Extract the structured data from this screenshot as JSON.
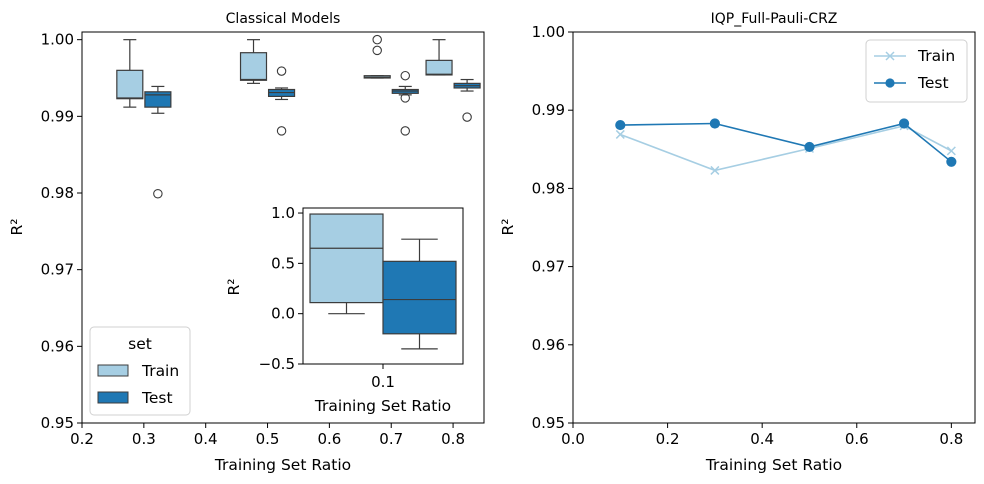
{
  "colors": {
    "train": "#a6cee3",
    "test": "#1f78b4",
    "box_edge": "#3c3c3c",
    "frame": "#000000",
    "background": "#ffffff",
    "legend_edge": "#d0d0d0"
  },
  "chart_data": [
    {
      "type": "box",
      "title": "Classical Models",
      "xlabel": "Training Set Ratio",
      "ylabel": "R²",
      "xlim": [
        0.2,
        0.85
      ],
      "ylim": [
        0.95,
        1.001
      ],
      "xticks": [
        "0.2",
        "0.3",
        "0.4",
        "0.5",
        "0.6",
        "0.7",
        "0.8"
      ],
      "yticks": [
        "0.95",
        "0.96",
        "0.97",
        "0.98",
        "0.99",
        "1.00"
      ],
      "grid": false,
      "legend": {
        "title": "set",
        "placement": "lower-left",
        "entries": [
          "Train",
          "Test"
        ]
      },
      "groups": [
        {
          "x": 0.3,
          "train": {
            "whisker_low": 0.9912,
            "q1": 0.9923,
            "median": 0.9924,
            "q3": 0.996,
            "whisker_high": 1.0,
            "outliers": []
          },
          "test": {
            "whisker_low": 0.9904,
            "q1": 0.9912,
            "median": 0.9928,
            "q3": 0.9932,
            "whisker_high": 0.9939,
            "outliers": [
              0.9799
            ]
          }
        },
        {
          "x": 0.5,
          "train": {
            "whisker_low": 0.9943,
            "q1": 0.9947,
            "median": 0.9948,
            "q3": 0.9983,
            "whisker_high": 1.0,
            "outliers": []
          },
          "test": {
            "whisker_low": 0.9922,
            "q1": 0.9926,
            "median": 0.9931,
            "q3": 0.9935,
            "whisker_high": 0.9937,
            "outliers": [
              0.9959,
              0.9881
            ]
          }
        },
        {
          "x": 0.7,
          "train": {
            "whisker_low": 0.995,
            "q1": 0.995,
            "median": 0.9951,
            "q3": 0.9953,
            "whisker_high": 0.9953,
            "outliers": [
              1.0,
              0.9986
            ]
          },
          "test": {
            "whisker_low": 0.9928,
            "q1": 0.993,
            "median": 0.9933,
            "q3": 0.9935,
            "whisker_high": 0.9939,
            "outliers": [
              0.9953,
              0.9924,
              0.9881
            ]
          }
        },
        {
          "x": 0.8,
          "train": {
            "whisker_low": 0.9954,
            "q1": 0.9954,
            "median": 0.9955,
            "q3": 0.9973,
            "whisker_high": 1.0,
            "outliers": []
          },
          "test": {
            "whisker_low": 0.9933,
            "q1": 0.9937,
            "median": 0.994,
            "q3": 0.9943,
            "whisker_high": 0.9948,
            "outliers": [
              0.9899
            ]
          }
        }
      ]
    },
    {
      "type": "box",
      "inset": true,
      "xlabel": "Training Set Ratio",
      "ylabel": "R²",
      "categories": [
        "0.1"
      ],
      "ylim": [
        -0.5,
        1.05
      ],
      "yticks": [
        "−0.5",
        "0.0",
        "0.5",
        "1.0"
      ],
      "groups": [
        {
          "x": "0.1",
          "train": {
            "whisker_low": 0.0,
            "q1": 0.11,
            "median": 0.65,
            "q3": 0.99,
            "whisker_high": 0.99,
            "outliers": []
          },
          "test": {
            "whisker_low": -0.35,
            "q1": -0.2,
            "median": 0.14,
            "q3": 0.52,
            "whisker_high": 0.74,
            "outliers": []
          }
        }
      ]
    },
    {
      "type": "line",
      "title": "IQP_Full-Pauli-CRZ",
      "xlabel": "Training Set Ratio",
      "ylabel": "R²",
      "xlim": [
        0.0,
        0.85
      ],
      "ylim": [
        0.95,
        1.0
      ],
      "xticks": [
        "0.0",
        "0.2",
        "0.4",
        "0.6",
        "0.8"
      ],
      "yticks": [
        "0.95",
        "0.96",
        "0.97",
        "0.98",
        "0.99",
        "1.00"
      ],
      "grid": false,
      "legend": {
        "placement": "top-right",
        "entries": [
          "Train",
          "Test"
        ]
      },
      "x": [
        0.1,
        0.3,
        0.5,
        0.7,
        0.8
      ],
      "series": [
        {
          "name": "Train",
          "marker": "x",
          "values": [
            0.9869,
            0.9823,
            0.9851,
            0.988,
            0.9848
          ]
        },
        {
          "name": "Test",
          "marker": "o",
          "values": [
            0.9881,
            0.9883,
            0.9853,
            0.9883,
            0.9834
          ]
        }
      ]
    }
  ]
}
